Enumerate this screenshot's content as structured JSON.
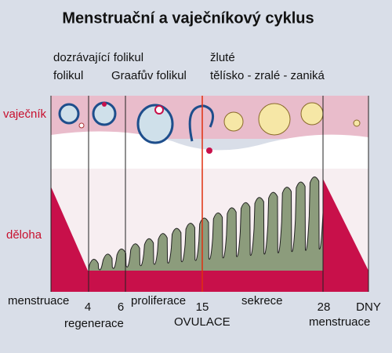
{
  "header": {
    "title": "Menstruační a vaječníkový cyklus"
  },
  "ovary_labels": {
    "maturing": "dozrávající folikul",
    "follicle": "folikul",
    "graafian": "Graafův folikul",
    "yellow": "žluté",
    "body": "tělísko - zralé - zaniká"
  },
  "side_labels": {
    "ovary": "vaječník",
    "uterus": "děloha"
  },
  "timeline": {
    "menstruation_start": "menstruace",
    "day4": "4",
    "day6": "6",
    "proliferation": "proliferace",
    "day15": "15",
    "secretion": "sekrece",
    "day28": "28",
    "days": "DNY",
    "regeneration": "regenerace",
    "ovulation": "OVULACE",
    "menstruation_end": "menstruace"
  }
}
